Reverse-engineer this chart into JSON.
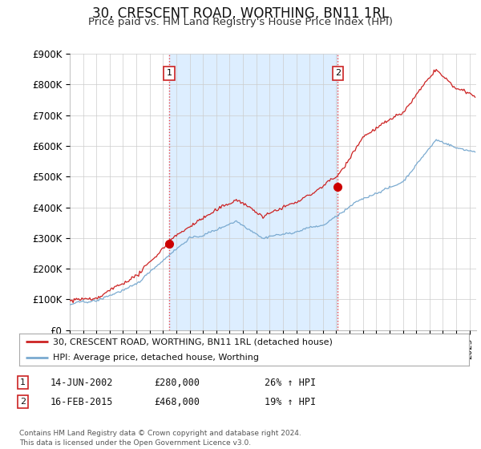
{
  "title": "30, CRESCENT ROAD, WORTHING, BN11 1RL",
  "subtitle": "Price paid vs. HM Land Registry's House Price Index (HPI)",
  "ylim": [
    0,
    900000
  ],
  "yticks": [
    0,
    100000,
    200000,
    300000,
    400000,
    500000,
    600000,
    700000,
    800000,
    900000
  ],
  "ytick_labels": [
    "£0",
    "£100K",
    "£200K",
    "£300K",
    "£400K",
    "£500K",
    "£600K",
    "£700K",
    "£800K",
    "£900K"
  ],
  "xmin": 1995.0,
  "xmax": 2025.5,
  "purchases": [
    {
      "date_num": 2002.45,
      "price": 280000,
      "label": "1"
    },
    {
      "date_num": 2015.12,
      "price": 468000,
      "label": "2"
    }
  ],
  "vline_color": "#ee4444",
  "shade_color": "#ddeeff",
  "purchase_marker_color": "#cc0000",
  "hpi_line_color": "#7aaad0",
  "price_line_color": "#cc2222",
  "legend_entries": [
    "30, CRESCENT ROAD, WORTHING, BN11 1RL (detached house)",
    "HPI: Average price, detached house, Worthing"
  ],
  "annotation_rows": [
    {
      "num": "1",
      "date": "14-JUN-2002",
      "price": "£280,000",
      "change": "26% ↑ HPI"
    },
    {
      "num": "2",
      "date": "16-FEB-2015",
      "price": "£468,000",
      "change": "19% ↑ HPI"
    }
  ],
  "footer": "Contains HM Land Registry data © Crown copyright and database right 2024.\nThis data is licensed under the Open Government Licence v3.0.",
  "background_color": "#ffffff",
  "grid_color": "#cccccc"
}
